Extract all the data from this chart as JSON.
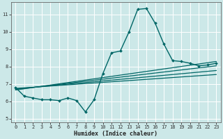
{
  "xlabel": "Humidex (Indice chaleur)",
  "xlim": [
    -0.5,
    23.5
  ],
  "ylim": [
    4.8,
    11.7
  ],
  "yticks": [
    5,
    6,
    7,
    8,
    9,
    10,
    11
  ],
  "xticks": [
    0,
    1,
    2,
    3,
    4,
    5,
    6,
    7,
    8,
    9,
    10,
    11,
    12,
    13,
    14,
    15,
    16,
    17,
    18,
    19,
    20,
    21,
    22,
    23
  ],
  "bg_color": "#cce8e8",
  "grid_color": "#ffffff",
  "line_color": "#006666",
  "lines": [
    {
      "x": [
        0,
        1,
        2,
        3,
        4,
        5,
        6,
        7,
        8,
        9,
        10,
        11,
        12,
        13,
        14,
        15,
        16,
        17,
        18,
        19,
        20,
        21,
        22,
        23
      ],
      "y": [
        6.8,
        6.3,
        6.2,
        6.1,
        6.1,
        6.05,
        6.2,
        6.05,
        5.4,
        6.1,
        7.6,
        8.8,
        8.9,
        10.0,
        11.3,
        11.35,
        10.5,
        9.3,
        8.35,
        8.3,
        8.2,
        8.05,
        8.1,
        8.2
      ],
      "marker": "D",
      "markersize": 2.0,
      "linewidth": 1.0,
      "zorder": 5
    },
    {
      "x": [
        0,
        23
      ],
      "y": [
        6.75,
        7.55
      ],
      "marker": null,
      "markersize": 0,
      "linewidth": 0.9,
      "zorder": 3
    },
    {
      "x": [
        0,
        23
      ],
      "y": [
        6.72,
        7.78
      ],
      "marker": null,
      "markersize": 0,
      "linewidth": 0.9,
      "zorder": 3
    },
    {
      "x": [
        0,
        23
      ],
      "y": [
        6.69,
        8.05
      ],
      "marker": null,
      "markersize": 0,
      "linewidth": 0.9,
      "zorder": 3
    },
    {
      "x": [
        0,
        23
      ],
      "y": [
        6.66,
        8.3
      ],
      "marker": null,
      "markersize": 0,
      "linewidth": 0.9,
      "zorder": 3
    }
  ],
  "tick_fontsize": 5.0,
  "xlabel_fontsize": 6.0,
  "spine_color": "#666666"
}
